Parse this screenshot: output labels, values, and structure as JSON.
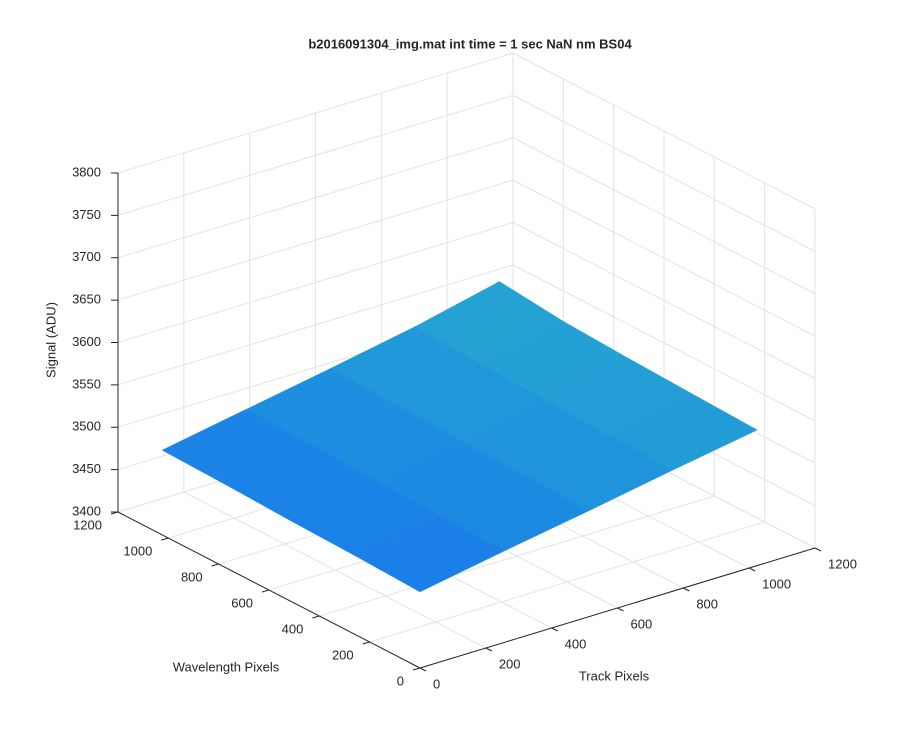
{
  "chart_data": {
    "type": "surface",
    "title": "b2016091304_img.mat int time = 1 sec  NaN nm BS04",
    "x_label": "Track Pixels",
    "y_label": "Wavelength Pixels",
    "z_label": "Signal (ADU)",
    "x": [
      0,
      256,
      512,
      768,
      1024
    ],
    "y": [
      0,
      256,
      512,
      768,
      1024
    ],
    "z": [
      [
        3490,
        3508,
        3525,
        3543,
        3560
      ],
      [
        3493,
        3510,
        3528,
        3545,
        3563
      ],
      [
        3495,
        3513,
        3530,
        3548,
        3566
      ],
      [
        3498,
        3515,
        3533,
        3551,
        3570
      ],
      [
        3500,
        3518,
        3536,
        3555,
        3578
      ]
    ],
    "xlim": [
      0,
      1200
    ],
    "xticks": [
      0,
      200,
      400,
      600,
      800,
      1000,
      1200
    ],
    "ylim": [
      0,
      1200
    ],
    "yticks": [
      0,
      200,
      400,
      600,
      800,
      1000,
      1200
    ],
    "zlim": [
      3400,
      3800
    ],
    "zticks": [
      3400,
      3450,
      3500,
      3550,
      3600,
      3650,
      3700,
      3750,
      3800
    ],
    "grid": true,
    "colormap": [
      "#3e26a8",
      "#1a80e8",
      "#2ab6c8",
      "#9fc53a",
      "#f9fb15"
    ]
  }
}
